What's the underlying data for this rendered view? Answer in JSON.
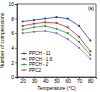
{
  "chart_data": {
    "type": "line",
    "title": "(a)",
    "x_label": "Temperature (°C)",
    "y_label": "Number of compressions",
    "x": [
      20,
      30,
      40,
      50,
      60,
      70,
      80
    ],
    "series": [
      {
        "name": "PPCH - 11",
        "color": "#1f3fbf",
        "marker": "circle",
        "values": [
          7.6,
          7.8,
          8.0,
          8.2,
          8.0,
          7.0,
          5.0
        ]
      },
      {
        "name": "PPCH - 1.6",
        "color": "#d62728",
        "marker": "circle",
        "values": [
          7.0,
          7.3,
          7.5,
          7.4,
          6.8,
          5.5,
          3.5
        ]
      },
      {
        "name": "PPCH - 2",
        "color": "#2ca02c",
        "marker": "circle",
        "values": [
          6.5,
          6.8,
          7.0,
          6.6,
          6.0,
          4.8,
          3.0
        ]
      },
      {
        "name": "PPC2",
        "color": "#9467bd",
        "marker": "circle",
        "values": [
          6.0,
          6.2,
          6.3,
          6.0,
          5.2,
          4.0,
          2.5
        ]
      }
    ],
    "xlim": [
      15,
      85
    ],
    "xticks": [
      20,
      30,
      40,
      50,
      60,
      70,
      80
    ],
    "ylim": [
      0,
      10
    ],
    "yticks": [
      0,
      2,
      4,
      6,
      8,
      10
    ],
    "legend": "lower left"
  }
}
